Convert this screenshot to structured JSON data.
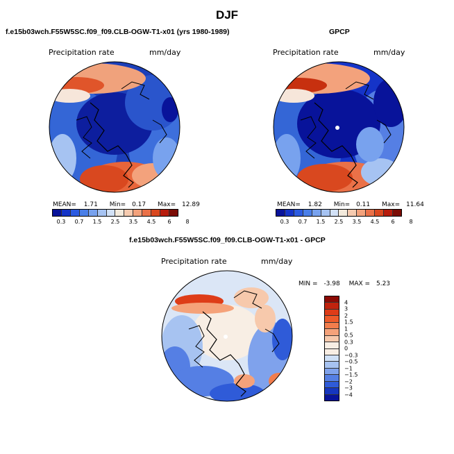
{
  "season_title": "DJF",
  "panels": [
    {
      "title": "f.e15b03wch.F55W5SC.f09_f09.CLB-OGW-T1-x01 (yrs 1980-1989)",
      "field_label": "Precipitation rate",
      "units": "mm/day",
      "stats": {
        "mean_label": "MEAN=",
        "mean": "1.71",
        "min_label": "Min=",
        "min": "0.17",
        "max_label": "Max=",
        "max": "12.89"
      }
    },
    {
      "title": "GPCP",
      "field_label": "Precipitation rate",
      "units": "mm/day",
      "stats": {
        "mean_label": "MEAN=",
        "mean": "1.82",
        "min_label": "Min=",
        "min": "0.11",
        "max_label": "Max=",
        "max": "11.64"
      }
    },
    {
      "title": "f.e15b03wch.F55W5SC.f09_f09.CLB-OGW-T1-x01 - GPCP",
      "field_label": "Precipitation rate",
      "units": "mm/day",
      "stats": {
        "min_label": "MIN =",
        "min": "-3.98",
        "max_label": "MAX =",
        "max": "5.23"
      }
    }
  ],
  "abs_colorbar": {
    "colors": [
      "#08139a",
      "#1534c8",
      "#2c5be0",
      "#4a7fe8",
      "#78a2ee",
      "#a6c3f2",
      "#d2e1f6",
      "#f3eadc",
      "#f6cbb0",
      "#f3a27c",
      "#ea7148",
      "#d9481f",
      "#b71c0c",
      "#7b0c05"
    ],
    "tick_labels": [
      "0.3",
      "0.7",
      "1.5",
      "2.5",
      "3.5",
      "4.5",
      "6",
      "8"
    ]
  },
  "diff_colorbar": {
    "colors": [
      "#8c0a04",
      "#c0230e",
      "#de3c18",
      "#ed5a2a",
      "#f27d4c",
      "#f5a27a",
      "#f7c9ac",
      "#f8eee4",
      "#cfe0f6",
      "#a7c3f1",
      "#7fa2ec",
      "#557fe4",
      "#2f5bd8",
      "#1636bf",
      "#08139a"
    ],
    "tick_labels": [
      "4",
      "3",
      "2",
      "1.5",
      "1",
      "0.5",
      "0.3",
      "0",
      "−0.3",
      "−0.5",
      "−1",
      "−1.5",
      "−2",
      "−3",
      "−4"
    ]
  }
}
